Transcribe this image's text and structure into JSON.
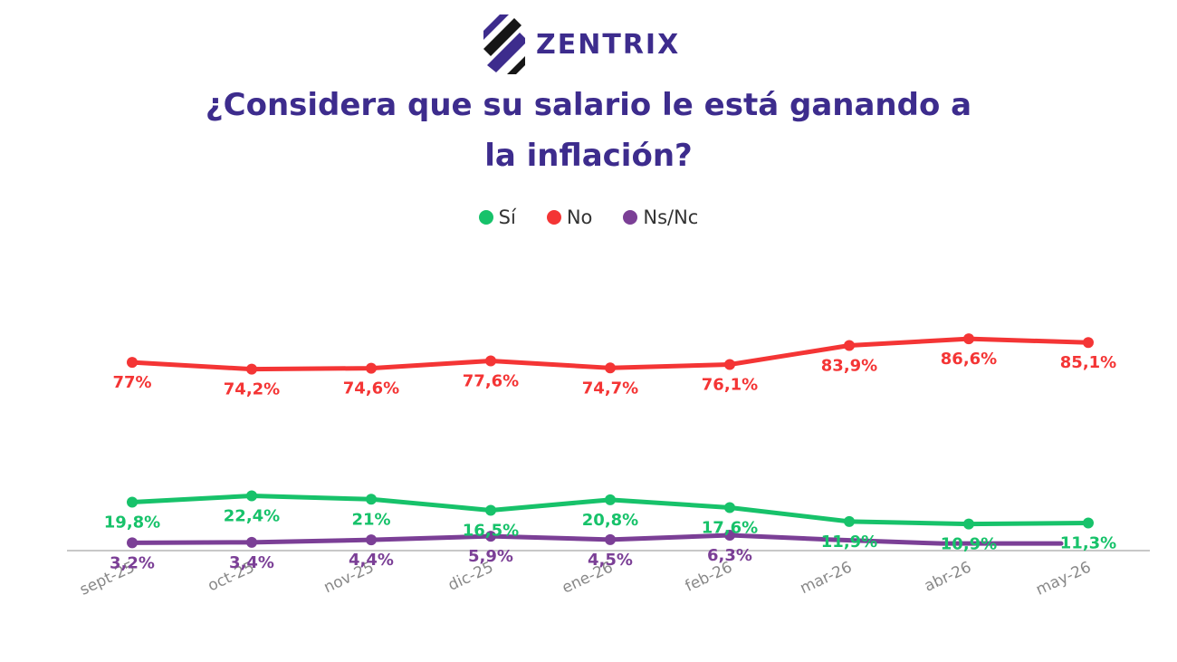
{
  "brand": {
    "name": "ZENTRIX"
  },
  "title_lines": [
    "¿Considera que su salario le está ganando a",
    "la inflación?"
  ],
  "colors": {
    "si": "#17c26a",
    "no": "#f43535",
    "nsnc": "#7b3f96",
    "title": "#3d2c8d"
  },
  "chart_data": {
    "type": "line",
    "title": "¿Considera que su salario le está ganando a la inflación?",
    "categories": [
      "sept-25",
      "oct-25",
      "nov-25",
      "dic-25",
      "ene-26",
      "feb-26",
      "mar-26",
      "abr-26",
      "may-26"
    ],
    "series": [
      {
        "name": "Sí",
        "values": [
          19.8,
          22.4,
          21,
          16.5,
          20.8,
          17.6,
          11.9,
          10.9,
          11.3
        ],
        "labels": [
          "19,8%",
          "22,4%",
          "21%",
          "16,5%",
          "20,8%",
          "17,6%",
          "11,9%",
          "10,9%",
          "11,3%"
        ]
      },
      {
        "name": "No",
        "values": [
          77,
          74.2,
          74.6,
          77.6,
          74.7,
          76.1,
          83.9,
          86.6,
          85.1
        ],
        "labels": [
          "77%",
          "74,2%",
          "74,6%",
          "77,6%",
          "74,7%",
          "76,1%",
          "83,9%",
          "86,6%",
          "85,1%"
        ]
      },
      {
        "name": "Ns/Nc",
        "values": [
          3.2,
          3.4,
          4.4,
          5.9,
          4.5,
          6.3,
          null,
          null,
          null
        ],
        "labels": [
          "3,2%",
          "3,4%",
          "4,4%",
          "5,9%",
          "4,5%",
          "6,3%",
          "",
          "",
          ""
        ]
      }
    ],
    "legend": "top-center",
    "grid": false,
    "ylim": [
      0,
      100
    ]
  }
}
